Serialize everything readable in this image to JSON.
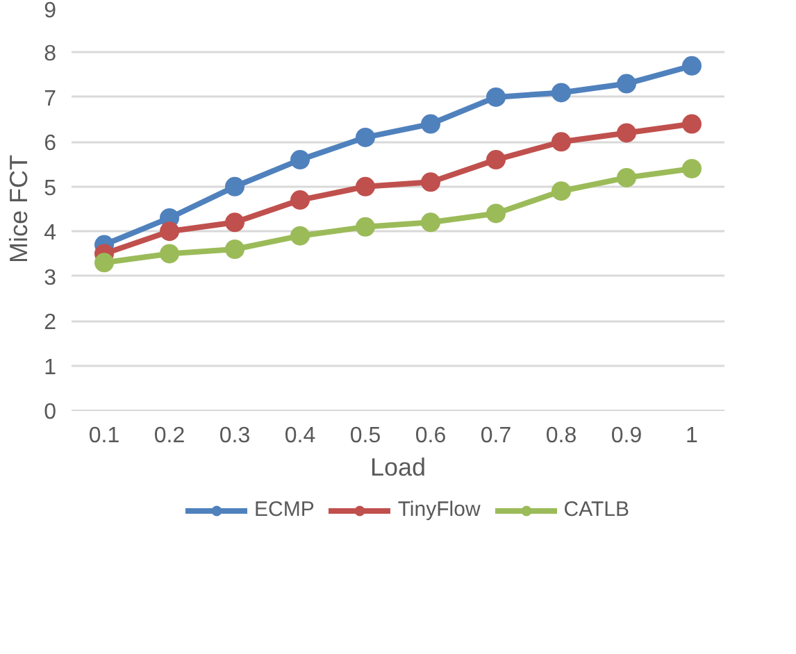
{
  "chart_data": {
    "type": "line",
    "xlabel": "Load",
    "ylabel": "Mice FCT",
    "categories": [
      "0.1",
      "0.2",
      "0.3",
      "0.4",
      "0.5",
      "0.6",
      "0.7",
      "0.8",
      "0.9",
      "1"
    ],
    "series": [
      {
        "name": "ECMP",
        "color": "#4f81bd",
        "values": [
          3.7,
          4.3,
          5.0,
          5.6,
          6.1,
          6.4,
          7.0,
          7.1,
          7.3,
          7.7
        ]
      },
      {
        "name": "TinyFlow",
        "color": "#c0504d",
        "values": [
          3.5,
          4.0,
          4.2,
          4.7,
          5.0,
          5.1,
          5.6,
          6.0,
          6.2,
          6.4
        ]
      },
      {
        "name": "CATLB",
        "color": "#9bbb59",
        "values": [
          3.3,
          3.5,
          3.6,
          3.9,
          4.1,
          4.2,
          4.4,
          4.9,
          5.2,
          5.4
        ]
      }
    ],
    "ylim": [
      0,
      9
    ],
    "yticks": [
      0,
      1,
      2,
      3,
      4,
      5,
      6,
      7,
      8,
      9
    ],
    "grid": "y",
    "legend": "bottom",
    "marker": "circle",
    "line_style": "solid"
  }
}
